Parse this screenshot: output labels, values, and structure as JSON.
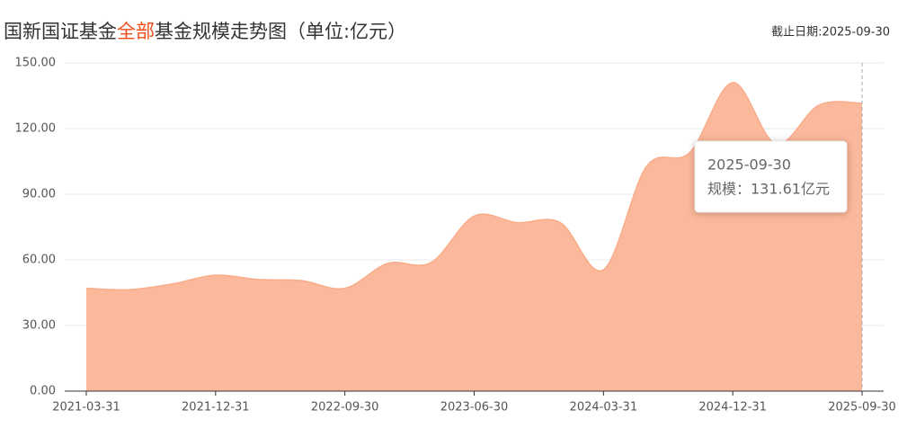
{
  "chart_data": {
    "type": "area",
    "title_parts": [
      "国新国证基金",
      "全部",
      "基金规模走势图（单位:亿元）"
    ],
    "subtitle": "截止日期:2025-09-30",
    "categories": [
      "2021-03-31",
      null,
      null,
      "2021-12-31",
      null,
      null,
      "2022-09-30",
      null,
      null,
      "2023-06-30",
      null,
      null,
      "2024-03-31",
      null,
      null,
      "2024-12-31",
      null,
      null,
      "2025-09-30"
    ],
    "series": [
      {
        "name": "规模",
        "color": "#fbb89b",
        "values": [
          47,
          46.4,
          49,
          53,
          51,
          50.5,
          47,
          58.4,
          58.8,
          80,
          77,
          77,
          55.5,
          102.7,
          109,
          141,
          113,
          130.7,
          131.61
        ]
      }
    ],
    "ylim": [
      0,
      150
    ],
    "yticks": [
      {
        "value": 0,
        "label": "0.00"
      },
      {
        "value": 30,
        "label": "30.00"
      },
      {
        "value": 60,
        "label": "60.00"
      },
      {
        "value": 90,
        "label": "90.00"
      },
      {
        "value": 120,
        "label": "120.00"
      },
      {
        "value": 150,
        "label": "150.00"
      }
    ],
    "grid": true,
    "tooltip": {
      "title": "2025-09-30",
      "text": "规模：131.61亿元"
    }
  }
}
